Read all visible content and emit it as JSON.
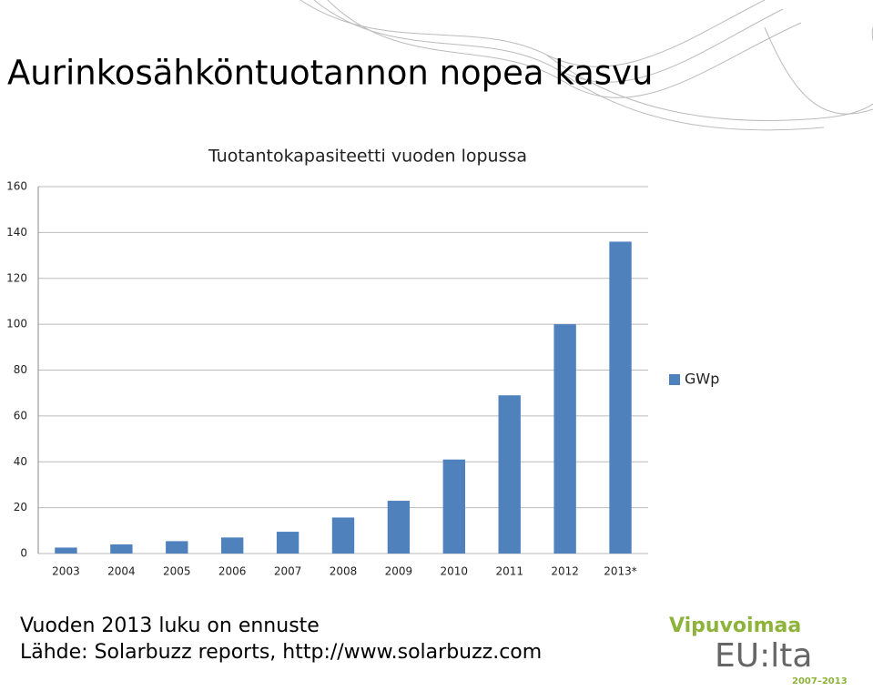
{
  "slide_title": "Aurinkosähköntuotannon nopea kasvu",
  "notes": [
    "Vuoden 2013 luku on ennuste",
    "Lähde: Solarbuzz reports, http://www.solarbuzz.com"
  ],
  "logo": {
    "line1": "Vipuvoimaa",
    "line2": "EU:lta",
    "years": "2007–2013"
  },
  "chart_data": {
    "type": "bar",
    "title": "Tuotantokapasiteetti vuoden lopussa",
    "categories": [
      "2003",
      "2004",
      "2005",
      "2006",
      "2007",
      "2008",
      "2009",
      "2010",
      "2011",
      "2012",
      "2013*"
    ],
    "series": [
      {
        "name": "GWp",
        "color": "#4f81bd",
        "values": [
          2.6,
          4,
          5.4,
          7,
          9.5,
          15.7,
          23,
          41,
          69,
          100,
          136
        ]
      }
    ],
    "ylim": [
      0,
      160
    ],
    "yticks": [
      0,
      20,
      40,
      60,
      80,
      100,
      120,
      140,
      160
    ],
    "grid": true,
    "legend": "right"
  }
}
